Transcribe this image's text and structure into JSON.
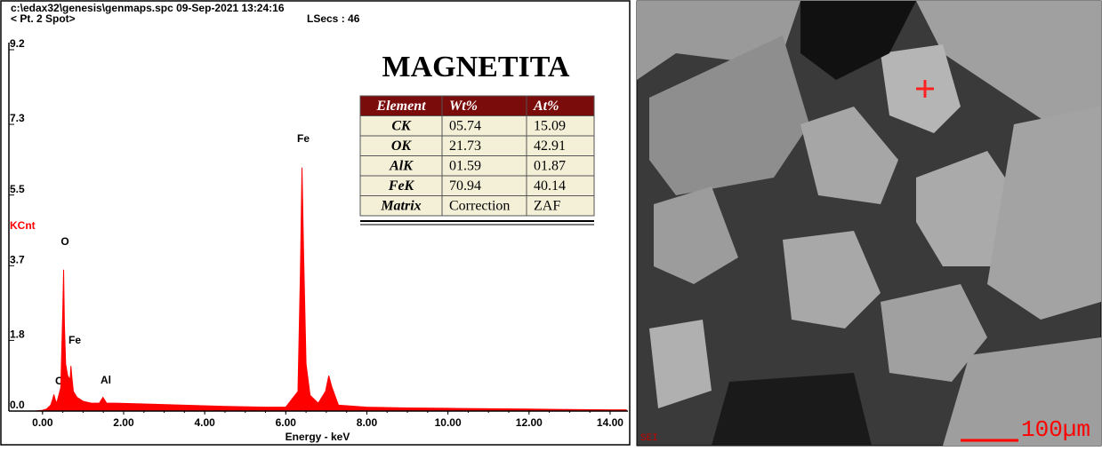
{
  "header": {
    "path": "c:\\edax32\\genesis\\genmaps.spc  09-Sep-2021 13:24:16",
    "point": "< Pt.  2 Spot>",
    "lsecs": "LSecs :  46"
  },
  "chart_data": {
    "type": "area",
    "xlabel": "Energy - keV",
    "ylabel": "KCnt",
    "color": "#ff0000",
    "x": [
      -0.2,
      0,
      0.1,
      0.2,
      0.25,
      0.28,
      0.31,
      0.35,
      0.45,
      0.5,
      0.52,
      0.54,
      0.57,
      0.62,
      0.68,
      0.7,
      0.72,
      0.76,
      0.85,
      1.0,
      1.2,
      1.4,
      1.49,
      1.58,
      1.8,
      2.5,
      3.5,
      4.5,
      5.5,
      6.0,
      6.3,
      6.36,
      6.4,
      6.44,
      6.5,
      6.6,
      6.8,
      6.98,
      7.06,
      7.14,
      7.3,
      8,
      9,
      10,
      11,
      12,
      13,
      14,
      14.4
    ],
    "values": [
      0,
      0.02,
      0.05,
      0.15,
      0.3,
      0.42,
      0.3,
      0.2,
      0.6,
      2.6,
      3.6,
      2.2,
      1.2,
      0.9,
      0.8,
      1.15,
      0.9,
      0.5,
      0.35,
      0.25,
      0.2,
      0.2,
      0.35,
      0.2,
      0.2,
      0.18,
      0.15,
      0.12,
      0.1,
      0.1,
      0.5,
      3.5,
      6.2,
      4.0,
      1.2,
      0.4,
      0.2,
      0.5,
      0.9,
      0.6,
      0.15,
      0.1,
      0.08,
      0.07,
      0.06,
      0.05,
      0.04,
      0.03,
      0.03
    ],
    "xlim": [
      -0.83,
      14.44
    ],
    "ylim": [
      0,
      9.2
    ],
    "xticks": [
      {
        "value": 0,
        "label": "0.00"
      },
      {
        "value": 2,
        "label": "2.00"
      },
      {
        "value": 4,
        "label": "4.00"
      },
      {
        "value": 6,
        "label": "6.00"
      },
      {
        "value": 8,
        "label": "8.00"
      },
      {
        "value": 10,
        "label": "10.00"
      },
      {
        "value": 12,
        "label": "12.00"
      },
      {
        "value": 14,
        "label": "14.00"
      }
    ],
    "yticks": [
      {
        "value": 0,
        "label": "0.0"
      },
      1.8,
      3.7,
      5.5,
      7.3,
      9.2
    ],
    "annotations": [
      "C",
      "O",
      "Fe",
      "Al",
      "Fe"
    ]
  },
  "table": {
    "title": "MAGNETITA",
    "header": [
      "Element",
      "Wt%",
      "At%"
    ],
    "rows": [
      [
        "CK",
        "05.74",
        "15.09"
      ],
      [
        "OK",
        "21.73",
        "42.91"
      ],
      [
        "AlK",
        "01.59",
        "01.87"
      ],
      [
        "FeK",
        "70.94",
        "40.14"
      ],
      [
        "Matrix",
        "Correction",
        "ZAF"
      ]
    ]
  },
  "image": {
    "mode": "SEI",
    "scale": "100µm"
  }
}
